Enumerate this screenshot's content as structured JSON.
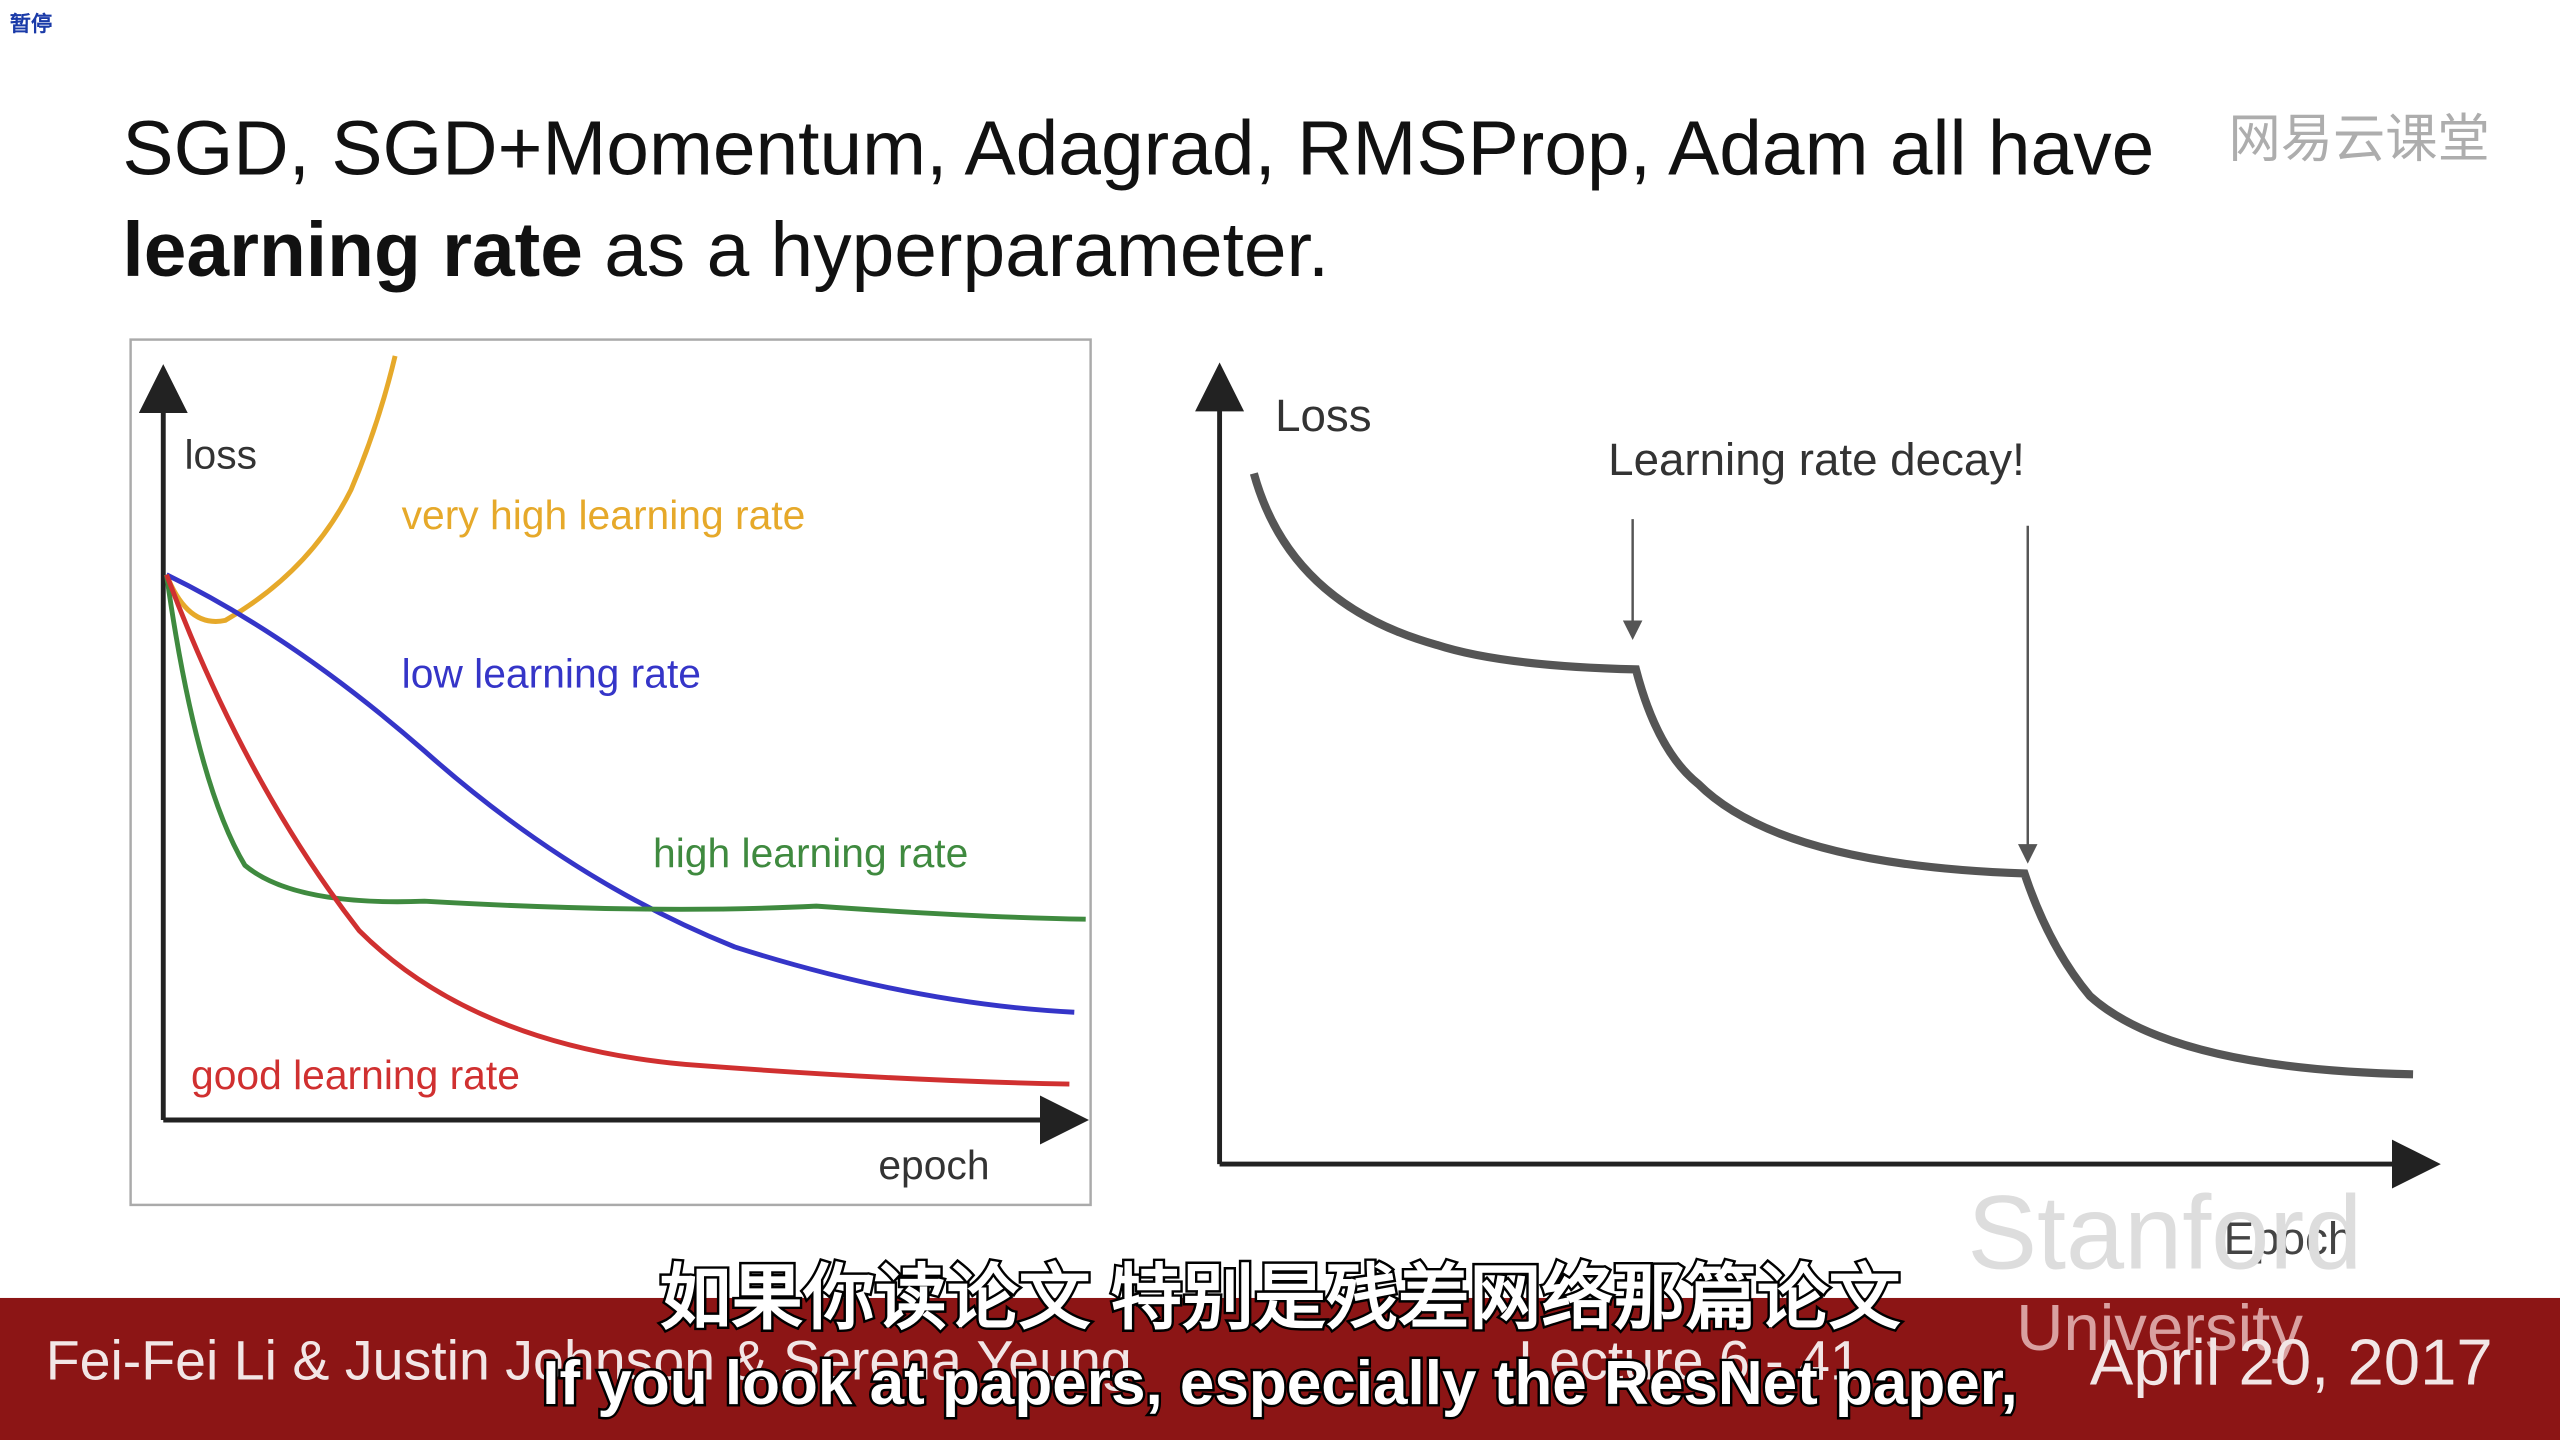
{
  "player": {
    "status": "暂停",
    "watermark": "网易云课堂"
  },
  "slide": {
    "title": {
      "line1": "SGD, SGD+Momentum, Adagrad, RMSProp, Adam all have",
      "bold": "learning rate",
      "rest": " as a hyperparameter."
    },
    "left_plot": {
      "y_label": "loss",
      "x_label": "epoch",
      "curves": [
        "very high learning rate",
        "low learning rate",
        "high learning rate",
        "good learning rate"
      ]
    },
    "right_plot": {
      "y_label": "Loss",
      "x_label": "Epoch",
      "annotation": "Learning rate decay!"
    },
    "logo": {
      "line1": "Stanford",
      "line2": "University"
    },
    "footer": {
      "authors": "Fei-Fei Li & Justin Johnson & Serena Yeung",
      "lecture": "Lecture 6 - 41",
      "date": "April 20, 2017"
    }
  },
  "subtitles": {
    "zh": "如果你读论文 特别是残差网络那篇论文",
    "en": "If you look at papers, especially the ResNet paper,"
  }
}
